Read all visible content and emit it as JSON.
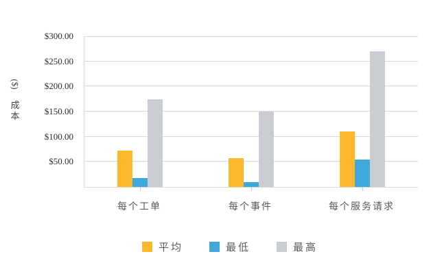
{
  "chart_data": {
    "type": "bar",
    "title": "",
    "categories": [
      "每个工单",
      "每个事件",
      "每个服务请求"
    ],
    "series": [
      {
        "name": "平均",
        "color": "#FAB92D",
        "values": [
          72,
          57,
          110
        ]
      },
      {
        "name": "最低",
        "color": "#41A8DC",
        "values": [
          18,
          10,
          55
        ]
      },
      {
        "name": "最高",
        "color": "#C9CDD1",
        "values": [
          175,
          150,
          270
        ]
      }
    ],
    "xlabel": "",
    "ylabel": "成本 ($)",
    "ylabel_display": {
      "rotated": "($)",
      "stacked": [
        "成",
        "本"
      ]
    },
    "ylim": [
      0,
      300
    ],
    "ytick_step": 50,
    "yticks": [
      {
        "value": 50,
        "label": "$50.00"
      },
      {
        "value": 100,
        "label": "$100.00"
      },
      {
        "value": 150,
        "label": "$150.00"
      },
      {
        "value": 200,
        "label": "$200.00"
      },
      {
        "value": 250,
        "label": "$250.00"
      },
      {
        "value": 300,
        "label": "$300.00"
      }
    ],
    "grid": true,
    "legend_position": "bottom",
    "colors": {
      "grid": "#D9D9D9",
      "axis_tick_text": "#2B2B2B",
      "category_text": "#595959",
      "legend_text": "#595959",
      "background": "#FFFFFF"
    }
  }
}
